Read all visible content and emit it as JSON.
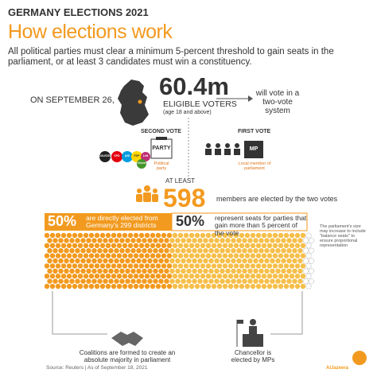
{
  "header": {
    "title": "GERMANY ELECTIONS 2021",
    "subtitle": "How elections work",
    "intro": "All political parties must clear a minimum 5-percent threshold to gain seats in the parliament, or at least 3 candidates must win a constituency."
  },
  "voters": {
    "date": "ON SEPTEMBER 26,",
    "count": "60.4m",
    "label": "ELIGIBLE VOTERS",
    "note": "(age 18 and above)",
    "system": "will vote in a two-vote system"
  },
  "second_vote": {
    "title": "SECOND VOTE",
    "box": "PARTY",
    "caption": "Political party",
    "parties": [
      "CDU/CSU",
      "SPD",
      "AfD",
      "FDP",
      "Left",
      "Green"
    ]
  },
  "first_vote": {
    "title": "FIRST VOTE",
    "box": "MP",
    "caption": "Local member of parliament"
  },
  "members": {
    "prefix": "AT LEAST",
    "count": "598",
    "text": "members are elected by the two votes"
  },
  "split": {
    "left_pct": "50%",
    "left_text": "are directly elected from Germany's 299 districts",
    "right_pct": "50%",
    "right_text": "represent seats for parties that gain more than 5 percent of the vote",
    "note": "The parliament's size may increase to include \"balance seats\" to ensure proportional representation"
  },
  "outcomes": {
    "coalition": "Coalitions are formed to create an absolute majority in parliament",
    "chancellor": "Chancellor is elected by MPs"
  },
  "footer": {
    "source": "Source: Reuters | As of September 18, 2021",
    "brand": "AlJazeera"
  }
}
